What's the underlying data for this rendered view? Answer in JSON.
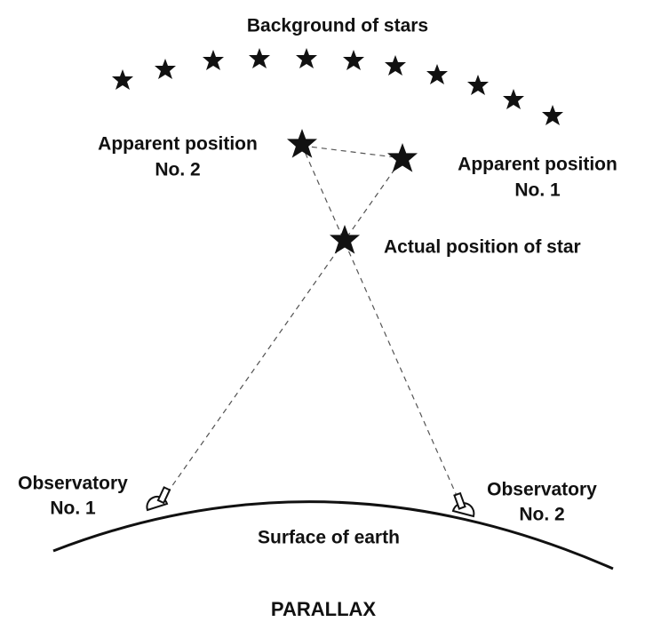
{
  "title": "PARALLAX",
  "labels": {
    "background": "Background of stars",
    "apparent_2": [
      "Apparent position",
      "No. 2"
    ],
    "apparent_1": [
      "Apparent position",
      "No. 1"
    ],
    "actual": "Actual position of star",
    "observatory_1": [
      "Observatory",
      "No. 1"
    ],
    "observatory_2": [
      "Observatory",
      "No. 2"
    ],
    "surface": "Surface of earth"
  }
}
